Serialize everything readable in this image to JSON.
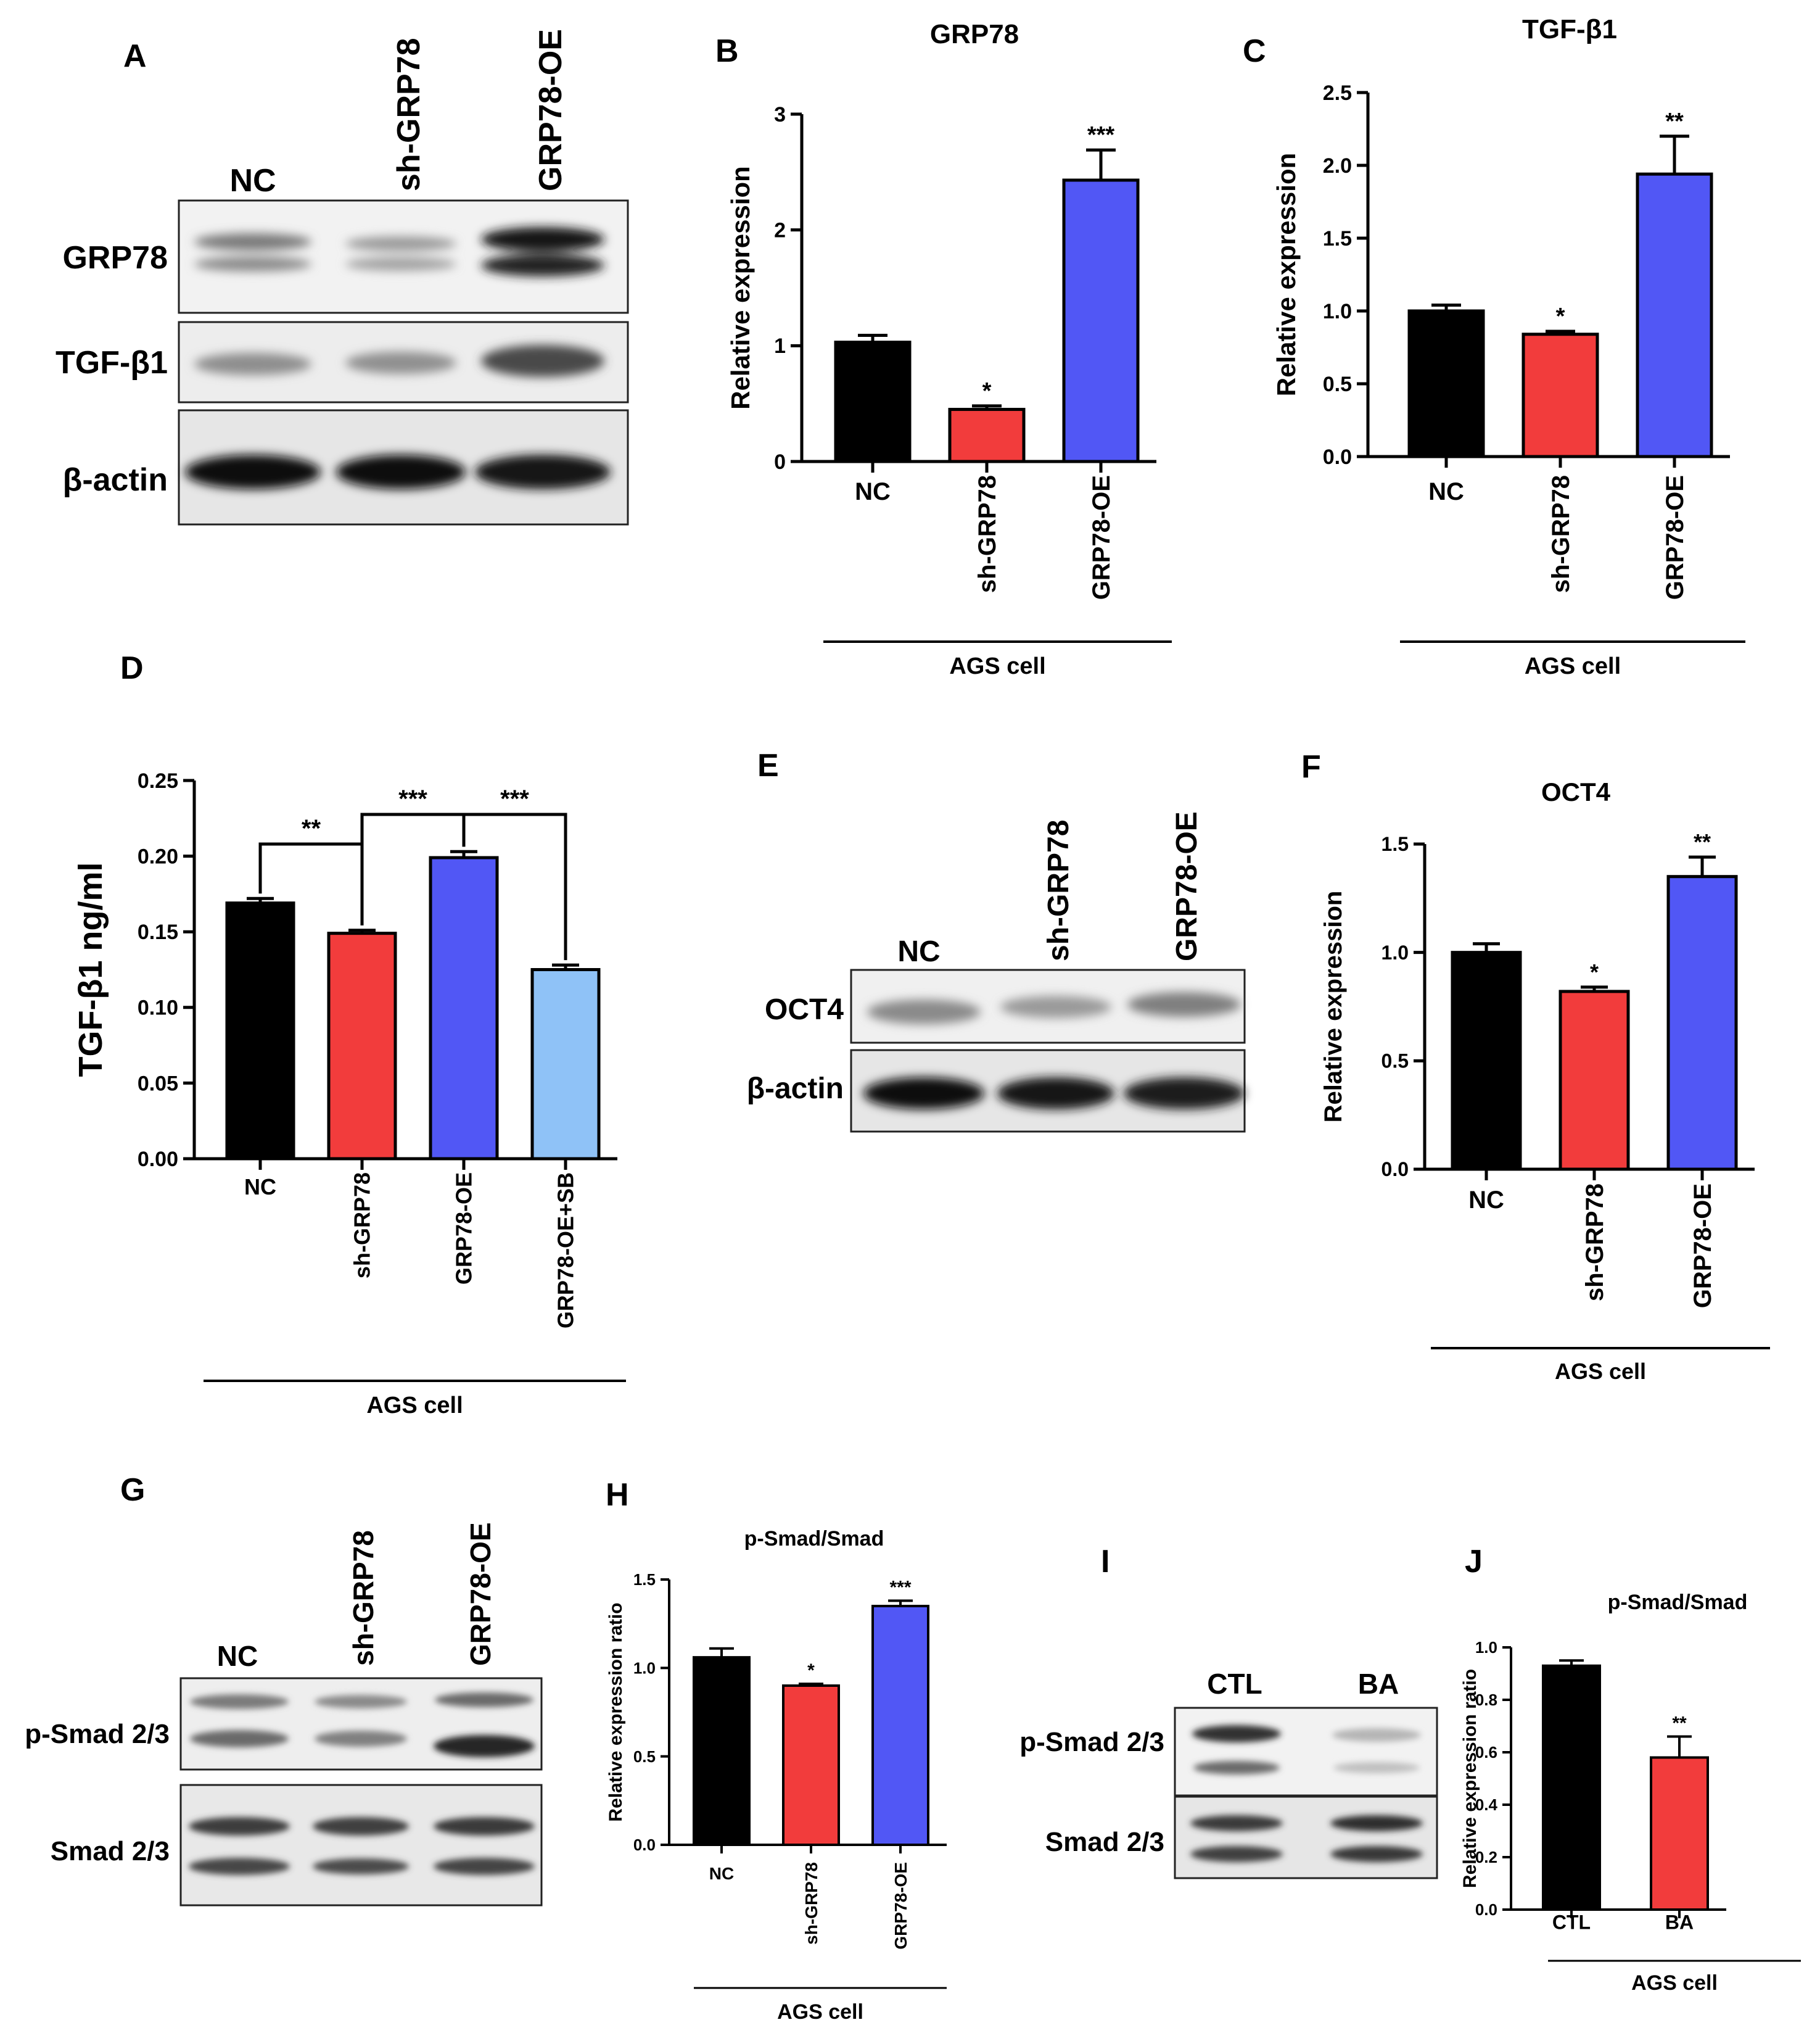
{
  "colors": {
    "nc": "#000000",
    "sh": "#f23c3c",
    "oe": "#5157f5",
    "sb": "#8fc2f7"
  },
  "panels": {
    "A": {
      "letter": "A",
      "lanes": [
        "NC",
        "sh-GRP78",
        "GRP78-OE"
      ],
      "rows": [
        "GRP78",
        "TGF-β1",
        "β-actin"
      ]
    },
    "E": {
      "letter": "E",
      "lanes": [
        "NC",
        "sh-GRP78",
        "GRP78-OE"
      ],
      "rows": [
        "OCT4",
        "β-actin"
      ]
    },
    "G": {
      "letter": "G",
      "lanes": [
        "NC",
        "sh-GRP78",
        "GRP78-OE"
      ],
      "rows": [
        "p-Smad 2/3",
        "Smad 2/3"
      ]
    },
    "I": {
      "letter": "I",
      "lanes": [
        "CTL",
        "BA"
      ],
      "rows": [
        "p-Smad 2/3",
        "Smad 2/3"
      ]
    }
  },
  "chart_data": [
    {
      "id": "B",
      "letter": "B",
      "type": "bar",
      "title": "GRP78",
      "ylabel": "Relative expression",
      "group_label": "AGS cell",
      "categories": [
        "NC",
        "sh-GRP78",
        "GRP78-OE"
      ],
      "values": [
        1.03,
        0.45,
        2.43
      ],
      "errors": [
        0.06,
        0.03,
        0.26
      ],
      "significance": [
        "",
        "*",
        "***"
      ],
      "ylim": [
        0,
        3
      ],
      "ticks": [
        "0",
        "1",
        "2",
        "3"
      ]
    },
    {
      "id": "C",
      "letter": "C",
      "type": "bar",
      "title": "TGF-β1",
      "ylabel": "Relative expression",
      "group_label": "AGS cell",
      "categories": [
        "NC",
        "sh-GRP78",
        "GRP78-OE"
      ],
      "values": [
        1.0,
        0.84,
        1.94
      ],
      "errors": [
        0.04,
        0.02,
        0.26
      ],
      "significance": [
        "",
        "*",
        "**"
      ],
      "ylim": [
        0,
        2.5
      ],
      "ticks": [
        "0.0",
        "0.5",
        "1.0",
        "1.5",
        "2.0",
        "2.5"
      ]
    },
    {
      "id": "D",
      "letter": "D",
      "type": "bar",
      "title": "",
      "ylabel": "TGF-β1 ng/ml",
      "group_label": "AGS cell",
      "categories": [
        "NC",
        "sh-GRP78",
        "GRP78-OE",
        "GRP78-OE+SB"
      ],
      "values": [
        0.169,
        0.149,
        0.199,
        0.125
      ],
      "errors": [
        0.003,
        0.002,
        0.004,
        0.003
      ],
      "significance": [
        "",
        "",
        "",
        ""
      ],
      "ylim": [
        0,
        0.25
      ],
      "ticks": [
        "0.00",
        "0.05",
        "0.10",
        "0.15",
        "0.20",
        "0.25"
      ],
      "brackets": [
        {
          "from": 0,
          "to": 1,
          "label": "**"
        },
        {
          "from": 1,
          "to": 2,
          "label": "***"
        },
        {
          "from": 2,
          "to": 3,
          "label": "***"
        }
      ]
    },
    {
      "id": "F",
      "letter": "F",
      "type": "bar",
      "title": "OCT4",
      "ylabel": "Relative expression",
      "group_label": "AGS cell",
      "categories": [
        "NC",
        "sh-GRP78",
        "GRP78-OE"
      ],
      "values": [
        1.0,
        0.82,
        1.35
      ],
      "errors": [
        0.04,
        0.02,
        0.09
      ],
      "significance": [
        "",
        "*",
        "**"
      ],
      "ylim": [
        0,
        1.5
      ],
      "ticks": [
        "0.0",
        "0.5",
        "1.0",
        "1.5"
      ]
    },
    {
      "id": "H",
      "letter": "H",
      "type": "bar",
      "title": "p-Smad/Smad",
      "ylabel": "Relative expression ratio",
      "group_label": "AGS cell",
      "categories": [
        "NC",
        "sh-GRP78",
        "GRP78-OE"
      ],
      "values": [
        1.06,
        0.9,
        1.35
      ],
      "errors": [
        0.05,
        0.01,
        0.03
      ],
      "significance": [
        "",
        "*",
        "***"
      ],
      "ylim": [
        0,
        1.5
      ],
      "ticks": [
        "0.0",
        "0.5",
        "1.0",
        "1.5"
      ]
    },
    {
      "id": "J",
      "letter": "J",
      "type": "bar",
      "title": "p-Smad/Smad",
      "ylabel": "Relative expression ratio",
      "group_label": "AGS cell",
      "categories": [
        "CTL",
        "BA"
      ],
      "values": [
        0.93,
        0.58
      ],
      "errors": [
        0.02,
        0.08
      ],
      "significance": [
        "",
        "**"
      ],
      "ylim": [
        0,
        1.0
      ],
      "ticks": [
        "0.0",
        "0.2",
        "0.4",
        "0.6",
        "0.8",
        "1.0"
      ]
    }
  ]
}
